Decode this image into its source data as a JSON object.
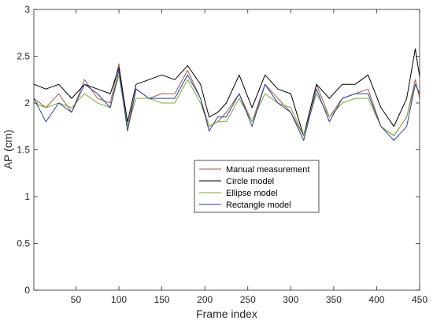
{
  "chart_data": {
    "type": "line",
    "xlabel": "Frame index",
    "ylabel": "AP (cm)",
    "xlim": [
      1,
      450
    ],
    "ylim": [
      0,
      3
    ],
    "xticks": [
      50,
      100,
      150,
      200,
      250,
      300,
      350,
      400,
      450
    ],
    "yticks": [
      0,
      0.5,
      1,
      1.5,
      2,
      2.5,
      3
    ],
    "ytick_labels": [
      "0",
      "0.5",
      "1",
      "1.5",
      "2",
      "2.5",
      "3"
    ],
    "grid": false,
    "legend_position": "center",
    "x": [
      1,
      15,
      30,
      45,
      60,
      75,
      90,
      100,
      110,
      120,
      135,
      150,
      165,
      180,
      195,
      205,
      215,
      225,
      240,
      255,
      270,
      285,
      300,
      315,
      330,
      345,
      360,
      375,
      390,
      405,
      420,
      435,
      445,
      450
    ],
    "series": [
      {
        "name": "Manual measurement",
        "color": "#a5584d",
        "values": [
          2.05,
          1.95,
          2.1,
          1.9,
          2.25,
          2.05,
          2.0,
          2.42,
          1.75,
          2.15,
          2.05,
          2.1,
          2.1,
          2.35,
          2.05,
          1.75,
          1.8,
          1.9,
          2.1,
          1.8,
          2.2,
          2.05,
          1.9,
          1.65,
          2.2,
          1.85,
          2.05,
          2.1,
          2.15,
          1.75,
          1.65,
          1.85,
          2.25,
          2.05
        ]
      },
      {
        "name": "Circle model",
        "color": "#000000",
        "values": [
          2.2,
          2.15,
          2.2,
          2.05,
          2.2,
          2.15,
          2.1,
          2.38,
          1.8,
          2.2,
          2.25,
          2.3,
          2.25,
          2.4,
          2.2,
          1.85,
          1.9,
          2.0,
          2.3,
          1.95,
          2.3,
          2.15,
          2.1,
          1.65,
          2.2,
          2.05,
          2.2,
          2.2,
          2.3,
          1.95,
          1.75,
          2.05,
          2.58,
          2.28
        ]
      },
      {
        "name": "Ellipse model",
        "color": "#77ac30",
        "values": [
          2.0,
          1.95,
          2.0,
          1.95,
          2.1,
          2.0,
          1.95,
          2.3,
          1.75,
          2.05,
          2.05,
          2.0,
          2.0,
          2.25,
          2.0,
          1.75,
          1.8,
          1.8,
          2.05,
          1.8,
          2.1,
          2.0,
          1.95,
          1.65,
          2.1,
          1.85,
          2.0,
          2.05,
          2.05,
          1.75,
          1.65,
          1.85,
          2.2,
          2.1
        ]
      },
      {
        "name": "Rectangle model",
        "color": "#2d3d9e",
        "values": [
          2.05,
          1.8,
          2.0,
          1.9,
          2.2,
          2.1,
          1.95,
          2.35,
          1.7,
          2.15,
          2.05,
          2.05,
          2.05,
          2.3,
          2.05,
          1.7,
          1.85,
          1.85,
          2.1,
          1.75,
          2.2,
          2.0,
          1.9,
          1.6,
          2.15,
          1.8,
          2.05,
          2.1,
          2.1,
          1.75,
          1.6,
          1.75,
          2.2,
          2.1
        ]
      }
    ]
  }
}
